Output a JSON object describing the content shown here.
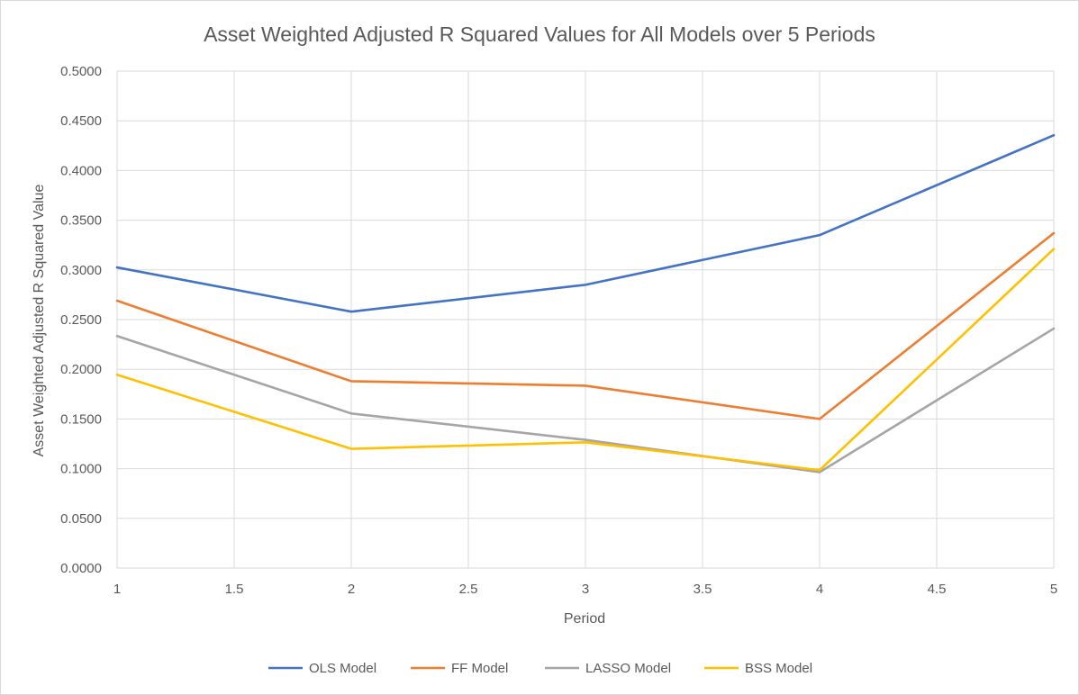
{
  "chart_data": {
    "type": "line",
    "title": "Asset Weighted Adjusted R Squared Values for All Models over 5 Periods",
    "xlabel": "Period",
    "ylabel": "Asset Weighted Adjusted R Squared Value",
    "xlim": [
      1,
      5
    ],
    "ylim": [
      0,
      0.5
    ],
    "x_ticks": [
      "1",
      "1.5",
      "2",
      "2.5",
      "3",
      "3.5",
      "4",
      "4.5",
      "5"
    ],
    "y_ticks": [
      "0.0000",
      "0.0500",
      "0.1000",
      "0.1500",
      "0.2000",
      "0.2500",
      "0.3000",
      "0.3500",
      "0.4000",
      "0.4500",
      "0.5000"
    ],
    "grid": true,
    "legend_position": "bottom",
    "x": [
      1,
      2,
      3,
      4,
      5
    ],
    "series": [
      {
        "name": "OLS Model",
        "color": "#4472C4",
        "values": [
          0.3025,
          0.258,
          0.285,
          0.335,
          0.4355
        ]
      },
      {
        "name": "FF Model",
        "color": "#ED7D31",
        "values": [
          0.269,
          0.188,
          0.1835,
          0.15,
          0.337
        ]
      },
      {
        "name": "LASSO Model",
        "color": "#A5A5A5",
        "values": [
          0.2335,
          0.1555,
          0.129,
          0.0965,
          0.241
        ]
      },
      {
        "name": "BSS Model",
        "color": "#FFC000",
        "values": [
          0.1945,
          0.12,
          0.1265,
          0.0985,
          0.321
        ]
      }
    ]
  }
}
